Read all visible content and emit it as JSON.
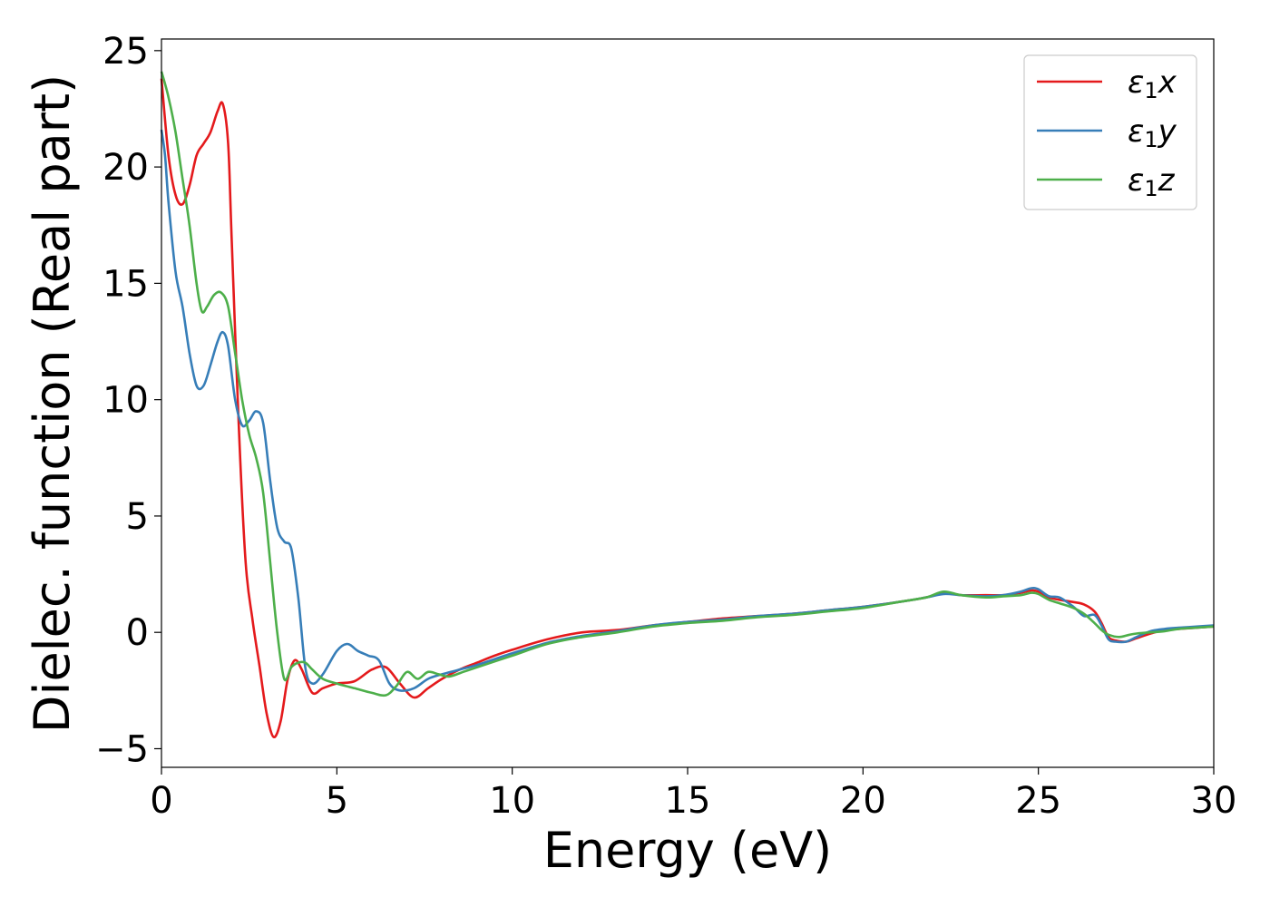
{
  "chart_data": {
    "type": "line",
    "title": "",
    "xlabel": "Energy (eV)",
    "ylabel": "Dielec. function (Real part)",
    "xlim": [
      0,
      30
    ],
    "ylim": [
      -5.8,
      25.5
    ],
    "xticks": [
      0,
      5,
      10,
      15,
      20,
      25,
      30
    ],
    "xtick_labels": [
      "0",
      "5",
      "10",
      "15",
      "20",
      "25",
      "30"
    ],
    "yticks": [
      -5,
      0,
      5,
      10,
      15,
      20,
      25
    ],
    "ytick_labels": [
      "−5",
      "0",
      "5",
      "10",
      "15",
      "20",
      "25"
    ],
    "grid": false,
    "legend_position": "top-right",
    "series": [
      {
        "name": "ε₁x",
        "legend_main": "ε",
        "legend_sub": "1",
        "legend_suffix": "x",
        "color": "#e41a1c",
        "x": [
          0,
          0.2,
          0.4,
          0.6,
          0.8,
          1.0,
          1.2,
          1.4,
          1.6,
          1.75,
          1.9,
          2.0,
          2.2,
          2.4,
          2.6,
          2.8,
          3.0,
          3.2,
          3.4,
          3.6,
          3.8,
          4.0,
          4.3,
          4.6,
          5.0,
          5.5,
          6.0,
          6.4,
          6.8,
          7.2,
          7.6,
          8.0,
          8.5,
          9.0,
          9.5,
          10.0,
          11.0,
          12.0,
          13.0,
          14.0,
          15.0,
          16.0,
          17.0,
          18.0,
          19.0,
          20.0,
          21.0,
          21.8,
          22.3,
          22.8,
          23.5,
          24.0,
          24.5,
          24.8,
          25.0,
          25.3,
          25.6,
          26.0,
          26.3,
          26.6,
          26.8,
          27.0,
          27.2,
          27.5,
          27.8,
          28.2,
          28.6,
          29.0,
          29.5,
          30.0
        ],
        "y": [
          23.8,
          20.5,
          18.8,
          18.4,
          19.2,
          20.5,
          21.0,
          21.5,
          22.4,
          22.7,
          21.0,
          17.0,
          9.0,
          3.0,
          0.5,
          -1.5,
          -3.5,
          -4.5,
          -3.8,
          -2.0,
          -1.2,
          -1.6,
          -2.6,
          -2.4,
          -2.2,
          -2.1,
          -1.6,
          -1.5,
          -2.2,
          -2.8,
          -2.4,
          -2.0,
          -1.6,
          -1.3,
          -1.0,
          -0.75,
          -0.3,
          0.0,
          0.1,
          0.3,
          0.45,
          0.6,
          0.7,
          0.8,
          0.95,
          1.1,
          1.3,
          1.5,
          1.7,
          1.6,
          1.6,
          1.6,
          1.7,
          1.8,
          1.75,
          1.5,
          1.4,
          1.3,
          1.2,
          0.9,
          0.4,
          -0.2,
          -0.35,
          -0.4,
          -0.25,
          -0.05,
          0.1,
          0.15,
          0.2,
          0.25
        ]
      },
      {
        "name": "ε₁y",
        "legend_main": "ε",
        "legend_sub": "1",
        "legend_suffix": "y",
        "color": "#377eb8",
        "x": [
          0,
          0.1,
          0.2,
          0.4,
          0.6,
          0.8,
          1.0,
          1.2,
          1.4,
          1.6,
          1.75,
          1.9,
          2.1,
          2.3,
          2.5,
          2.7,
          2.9,
          3.1,
          3.3,
          3.5,
          3.7,
          3.9,
          4.1,
          4.3,
          4.6,
          5.0,
          5.3,
          5.6,
          5.9,
          6.2,
          6.5,
          6.8,
          7.2,
          7.6,
          8.0,
          8.5,
          9.0,
          10.0,
          11.0,
          12.0,
          13.0,
          14.0,
          15.0,
          16.0,
          17.0,
          18.0,
          19.0,
          20.0,
          21.0,
          21.8,
          22.3,
          22.8,
          23.5,
          24.0,
          24.5,
          24.8,
          25.0,
          25.3,
          25.6,
          26.0,
          26.3,
          26.6,
          26.8,
          27.0,
          27.2,
          27.5,
          27.8,
          28.2,
          28.6,
          29.0,
          29.5,
          30.0
        ],
        "y": [
          21.6,
          20.5,
          18.5,
          15.5,
          14.0,
          12.0,
          10.6,
          10.6,
          11.5,
          12.5,
          12.9,
          12.3,
          10.0,
          8.9,
          9.1,
          9.5,
          9.0,
          6.5,
          4.5,
          3.9,
          3.6,
          1.5,
          -1.5,
          -2.2,
          -1.8,
          -0.8,
          -0.5,
          -0.8,
          -1.0,
          -1.2,
          -2.2,
          -2.5,
          -2.4,
          -2.0,
          -1.8,
          -1.6,
          -1.4,
          -0.9,
          -0.45,
          -0.15,
          0.05,
          0.3,
          0.45,
          0.55,
          0.7,
          0.8,
          0.95,
          1.1,
          1.3,
          1.5,
          1.65,
          1.6,
          1.55,
          1.6,
          1.75,
          1.9,
          1.85,
          1.55,
          1.5,
          1.1,
          0.7,
          0.75,
          0.3,
          -0.3,
          -0.4,
          -0.4,
          -0.2,
          0.05,
          0.15,
          0.2,
          0.25,
          0.3
        ]
      },
      {
        "name": "ε₁z",
        "legend_main": "ε",
        "legend_sub": "1",
        "legend_suffix": "z",
        "color": "#4daf4a",
        "x": [
          0,
          0.2,
          0.4,
          0.6,
          0.8,
          1.0,
          1.15,
          1.3,
          1.5,
          1.7,
          1.9,
          2.1,
          2.3,
          2.5,
          2.7,
          2.9,
          3.1,
          3.3,
          3.5,
          3.7,
          3.9,
          4.1,
          4.3,
          4.6,
          5.0,
          5.5,
          6.0,
          6.4,
          6.7,
          7.0,
          7.3,
          7.6,
          7.9,
          8.2,
          8.6,
          9.0,
          10.0,
          11.0,
          12.0,
          13.0,
          14.0,
          15.0,
          16.0,
          17.0,
          18.0,
          19.0,
          20.0,
          21.0,
          21.8,
          22.3,
          22.8,
          23.5,
          24.0,
          24.5,
          24.8,
          25.0,
          25.3,
          25.6,
          26.0,
          26.3,
          26.6,
          26.8,
          27.0,
          27.3,
          27.6,
          27.8,
          28.2,
          28.6,
          29.0,
          29.5,
          30.0
        ],
        "y": [
          24.1,
          23.0,
          21.5,
          19.5,
          17.5,
          15.0,
          13.8,
          14.0,
          14.5,
          14.6,
          14.0,
          12.0,
          10.0,
          8.5,
          7.5,
          6.0,
          3.0,
          0.0,
          -2.0,
          -1.5,
          -1.3,
          -1.3,
          -1.6,
          -2.0,
          -2.2,
          -2.4,
          -2.6,
          -2.7,
          -2.3,
          -1.7,
          -2.0,
          -1.7,
          -1.8,
          -1.9,
          -1.7,
          -1.5,
          -1.0,
          -0.5,
          -0.2,
          0.0,
          0.25,
          0.4,
          0.5,
          0.65,
          0.75,
          0.9,
          1.05,
          1.3,
          1.5,
          1.75,
          1.6,
          1.5,
          1.55,
          1.6,
          1.7,
          1.65,
          1.4,
          1.25,
          1.05,
          0.8,
          0.4,
          0.1,
          -0.1,
          -0.2,
          -0.1,
          -0.05,
          0.0,
          0.05,
          0.15,
          0.2,
          0.25
        ]
      }
    ]
  }
}
